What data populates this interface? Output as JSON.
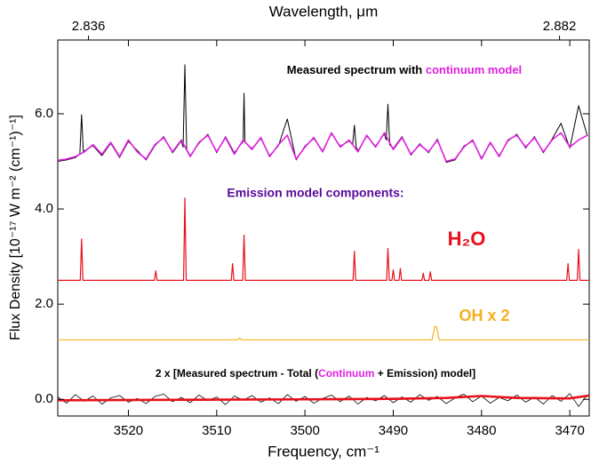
{
  "chart_data": {
    "type": "line",
    "x_label": "Frequency, cm⁻¹",
    "x2_label": "Wavelength, μm",
    "y_label": "Flux Density [10⁻¹⁷ W m⁻² (cm⁻¹)⁻¹]",
    "xlim": [
      3528,
      3467.8
    ],
    "xticks": [
      3520,
      3510,
      3500,
      3490,
      3480,
      3470
    ],
    "x2lim": [
      2.833,
      2.8849
    ],
    "x2ticks": [
      2.836,
      2.882
    ],
    "ylim": [
      -0.35,
      7.55
    ],
    "yticks": [
      {
        "value": 0,
        "label": "0.0"
      },
      {
        "value": 2,
        "label": "2.0"
      },
      {
        "value": 4,
        "label": "4.0"
      },
      {
        "value": 6,
        "label": "6.0"
      }
    ],
    "annotations": [
      {
        "text": "Measured spectrum with ",
        "color": "#000000"
      },
      {
        "text": "Emission model components:",
        "color": "#5a0a9a"
      },
      {
        "text": "2 x [Measured spectrum - Total (",
        "color": "#000000"
      },
      {
        "text": "Continuum",
        "color": "#e020e0"
      },
      {
        "text": " + Emission) model]",
        "color": "#000000"
      }
    ],
    "series": [
      {
        "color": "#000000",
        "x": [
          3528,
          3527,
          3526,
          3525.5,
          3525.3,
          3525.1,
          3525,
          3524,
          3523,
          3522,
          3521,
          3520,
          3519,
          3518,
          3517,
          3516,
          3515,
          3514,
          3513.8,
          3513.6,
          3513.4,
          3513,
          3512,
          3511,
          3510,
          3509,
          3508,
          3507,
          3506.9,
          3506.8,
          3506,
          3505,
          3504,
          3503,
          3502,
          3501,
          3500,
          3499,
          3498,
          3497,
          3496,
          3495,
          3494.6,
          3494.4,
          3494.2,
          3494,
          3493,
          3492,
          3491,
          3490.8,
          3490.6,
          3490.4,
          3490,
          3489,
          3488,
          3487,
          3486,
          3485,
          3484,
          3483,
          3482,
          3481,
          3480,
          3479,
          3478,
          3477,
          3476,
          3475,
          3474,
          3473,
          3472,
          3471,
          3470,
          3469,
          3468
        ],
        "values": [
          5.0,
          5.03,
          5.08,
          5.15,
          5.98,
          5.18,
          5.22,
          5.33,
          5.12,
          5.38,
          5.08,
          5.42,
          5.23,
          5.03,
          5.33,
          5.52,
          5.18,
          5.43,
          5.3,
          7.03,
          5.25,
          5.12,
          5.38,
          5.57,
          5.18,
          5.52,
          5.18,
          5.42,
          6.43,
          5.4,
          5.27,
          5.48,
          5.12,
          5.33,
          5.89,
          5.03,
          5.32,
          5.48,
          5.22,
          5.58,
          5.32,
          5.43,
          5.35,
          5.76,
          5.3,
          5.22,
          5.53,
          5.32,
          5.58,
          5.45,
          6.2,
          5.35,
          5.27,
          5.52,
          5.13,
          5.37,
          5.18,
          5.47,
          4.98,
          5.03,
          5.32,
          5.43,
          5.07,
          5.38,
          5.12,
          5.43,
          5.57,
          5.28,
          5.52,
          5.18,
          5.47,
          5.8,
          5.28,
          6.17,
          5.53
        ]
      },
      {
        "name": "continuum model",
        "color": "#e020e0",
        "x": [
          3528,
          3527,
          3526,
          3525,
          3524,
          3523,
          3522,
          3521,
          3520,
          3519,
          3518,
          3517,
          3516,
          3515,
          3514,
          3513,
          3512,
          3511,
          3510,
          3509,
          3508,
          3507,
          3506,
          3505,
          3504,
          3503,
          3502,
          3501,
          3500,
          3499,
          3498,
          3497,
          3496,
          3495,
          3494,
          3493,
          3492,
          3491,
          3490,
          3489,
          3488,
          3487,
          3486,
          3485,
          3484,
          3483,
          3482,
          3481,
          3480,
          3479,
          3478,
          3477,
          3476,
          3475,
          3474,
          3473,
          3472,
          3471,
          3470,
          3469,
          3468
        ],
        "values": [
          5.02,
          5.05,
          5.1,
          5.2,
          5.35,
          5.15,
          5.4,
          5.1,
          5.45,
          5.2,
          5.05,
          5.35,
          5.5,
          5.2,
          5.45,
          5.1,
          5.4,
          5.55,
          5.2,
          5.5,
          5.15,
          5.45,
          5.25,
          5.5,
          5.1,
          5.35,
          5.55,
          5.05,
          5.3,
          5.5,
          5.2,
          5.6,
          5.3,
          5.45,
          5.2,
          5.55,
          5.3,
          5.6,
          5.25,
          5.5,
          5.15,
          5.35,
          5.2,
          5.45,
          5.0,
          5.05,
          5.3,
          5.45,
          5.05,
          5.4,
          5.1,
          5.45,
          5.55,
          5.3,
          5.5,
          5.2,
          5.45,
          5.6,
          5.3,
          5.45,
          5.55
        ]
      },
      {
        "name": "H₂O",
        "color": "#e8101a",
        "x": [
          3528,
          3525.45,
          3525.3,
          3525.15,
          3517.05,
          3516.9,
          3516.75,
          3513.75,
          3513.6,
          3513.45,
          3508.35,
          3508.2,
          3508.05,
          3507.05,
          3506.9,
          3506.75,
          3494.55,
          3494.4,
          3494.25,
          3490.75,
          3490.6,
          3490.45,
          3490.15,
          3490.0,
          3489.85,
          3489.35,
          3489.2,
          3489.05,
          3486.75,
          3486.6,
          3486.45,
          3485.95,
          3485.8,
          3485.65,
          3470.35,
          3470.2,
          3470.05,
          3469.15,
          3469.0,
          3468.85,
          3467.8
        ],
        "values": [
          2.5,
          2.5,
          3.37,
          2.5,
          2.5,
          2.7,
          2.5,
          2.5,
          4.23,
          2.5,
          2.5,
          2.85,
          2.5,
          2.5,
          3.45,
          2.5,
          2.5,
          3.11,
          2.5,
          2.5,
          3.17,
          2.5,
          2.5,
          2.72,
          2.5,
          2.5,
          2.75,
          2.5,
          2.5,
          2.65,
          2.5,
          2.5,
          2.68,
          2.5,
          2.5,
          2.85,
          2.5,
          2.5,
          3.15,
          2.5,
          2.5
        ]
      },
      {
        "name": "OH x 2",
        "color": "#f5b020",
        "x": [
          3528,
          3507.6,
          3507.4,
          3507.2,
          3485.6,
          3485.3,
          3485.1,
          3484.8,
          3467.8
        ],
        "values": [
          1.25,
          1.25,
          1.29,
          1.25,
          1.25,
          1.53,
          1.53,
          1.25,
          1.25
        ]
      },
      {
        "color": "#000000",
        "x": [
          3528,
          3527,
          3526,
          3525,
          3524,
          3523,
          3522,
          3521,
          3520,
          3519,
          3518,
          3517,
          3516,
          3515,
          3514,
          3513,
          3512,
          3511,
          3510,
          3509,
          3508,
          3507,
          3506,
          3505,
          3504,
          3503,
          3502,
          3501,
          3500,
          3499,
          3498,
          3497,
          3496,
          3495,
          3494,
          3493,
          3492,
          3491,
          3490,
          3489,
          3488,
          3487,
          3486,
          3485,
          3484,
          3483,
          3482,
          3481,
          3480,
          3479,
          3478,
          3477,
          3476,
          3475,
          3474,
          3473,
          3472,
          3471,
          3470,
          3469,
          3468
        ],
        "values": [
          0.05,
          -0.08,
          0.1,
          -0.04,
          0.07,
          -0.1,
          0.03,
          0.08,
          -0.06,
          0.02,
          -0.09,
          0.06,
          0.11,
          -0.05,
          0.04,
          -0.07,
          0.09,
          -0.03,
          0.05,
          -0.11,
          0.07,
          -0.02,
          0.08,
          -0.06,
          0.03,
          -0.09,
          0.1,
          -0.04,
          0.06,
          -0.08,
          0.02,
          0.09,
          -0.05,
          0.07,
          -0.1,
          0.04,
          -0.03,
          0.08,
          -0.07,
          0.05,
          -0.06,
          0.1,
          -0.02,
          0.06,
          -0.09,
          0.03,
          0.11,
          -0.05,
          0.07,
          -0.08,
          0.04,
          -0.03,
          0.09,
          -0.06,
          0.05,
          -0.1,
          0.08,
          -0.04,
          0.12,
          -0.15,
          0.1
        ]
      },
      {
        "color": "#e8101a",
        "x": [
          3528,
          3500,
          3490,
          3484,
          3480,
          3476,
          3470,
          3467.8
        ],
        "values": [
          -0.02,
          0,
          0.01,
          0.03,
          0.07,
          0.03,
          0.02,
          0.08
        ]
      }
    ]
  }
}
